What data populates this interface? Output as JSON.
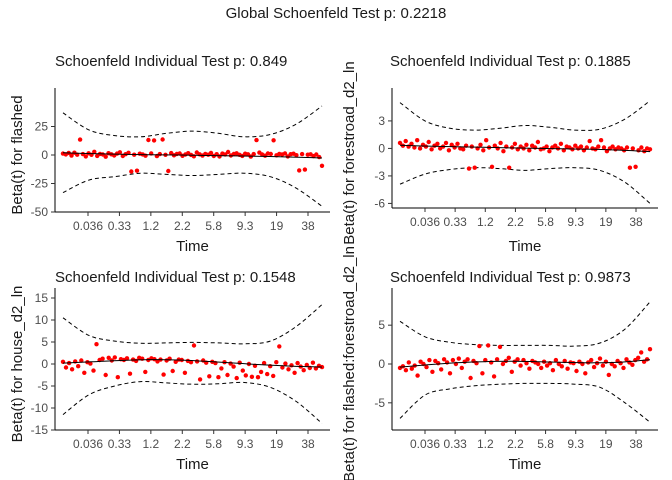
{
  "figure": {
    "global_title": "Global Schoenfeld Test p: 0.2218",
    "x_tick_labels": [
      "0.036",
      "0.33",
      "1.2",
      "2.2",
      "5.8",
      "9.3",
      "19",
      "38"
    ]
  },
  "chart_data": [
    {
      "type": "scatter",
      "title": "Schoenfeld Individual Test p: 0.849",
      "xlabel": "Time",
      "ylabel": "Beta(t) for flashed",
      "ylim": [
        -50,
        50
      ],
      "yticks": [
        -50,
        -25,
        0,
        25
      ],
      "x_ticks": [
        "0.036",
        "0.33",
        "1.2",
        "2.2",
        "5.8",
        "9.3",
        "19",
        "38"
      ],
      "series": [
        {
          "values": [
            1.2,
            0.5,
            1.8,
            -0.5,
            2.0,
            0.3,
            13.5,
            0.8,
            -1.2,
            1.5,
            0.2,
            2.8,
            -0.8,
            1.0,
            0.4,
            -1.5,
            1.6,
            0.6,
            -0.4,
            1.2,
            2.4,
            -0.9,
            0.7,
            1.9,
            -14.5,
            0.3,
            -13.8,
            1.1,
            0.5,
            -0.6,
            13.2,
            1.4,
            12.8,
            -1.0,
            0.8,
            13.6,
            0.2,
            -14.0,
            1.7,
            -0.3,
            0.9,
            1.3,
            -0.7,
            0.4,
            1.6,
            0.1,
            -1.1,
            2.2,
            0.6,
            -0.5,
            1.0,
            0.3,
            1.8,
            -0.9,
            0.7,
            -1.3,
            1.2,
            0.5,
            2.6,
            -0.4,
            0.9,
            1.5,
            0.2,
            -0.8,
            1.1,
            0.6,
            -1.4,
            0.8,
            13.1,
            2.1,
            0.4,
            -0.6,
            1.3,
            0.9,
            12.9,
            -0.3,
            1.0,
            0.5,
            1.4,
            -1.2,
            0.7,
            1.1,
            -0.2,
            -13.5,
            0.8,
            -12.8,
            0.3,
            0.6,
            -1.0,
            0.4,
            -1.8,
            -9.5
          ]
        }
      ],
      "smooth": [
        2.0,
        1.2,
        0.6,
        0.2,
        0.0,
        -0.4,
        -0.8,
        -1.2,
        -1.8,
        -2.6
      ],
      "band_upper": [
        37,
        22,
        17,
        16,
        19,
        21,
        19,
        16,
        18,
        27,
        43
      ],
      "band_lower": [
        -33,
        -22,
        -19,
        -16,
        -17,
        -18,
        -17,
        -16,
        -19,
        -29,
        -45
      ]
    },
    {
      "type": "scatter",
      "title": "Schoenfeld Individual Test p: 0.1885",
      "xlabel": "Time",
      "ylabel": "Beta(t) for forestroad_d2_ln",
      "ylim": [
        -6.5,
        5.5
      ],
      "yticks": [
        -6,
        -3,
        0,
        3
      ],
      "x_ticks": [
        "0.036",
        "0.33",
        "1.2",
        "2.2",
        "5.8",
        "9.3",
        "19",
        "38"
      ],
      "series": [
        {
          "values": [
            0.6,
            0.3,
            0.8,
            0.2,
            0.5,
            0.1,
            0.9,
            0.0,
            0.4,
            0.2,
            0.7,
            -0.1,
            0.3,
            0.5,
            0.0,
            0.2,
            0.6,
            -0.2,
            0.4,
            0.1,
            0.5,
            0.0,
            -0.1,
            0.3,
            -2.2,
            0.2,
            -2.1,
            0.0,
            0.4,
            -0.2,
            0.9,
            0.1,
            -2.0,
            0.3,
            0.0,
            0.6,
            -0.3,
            0.2,
            -2.1,
            0.1,
            0.5,
            -0.1,
            0.2,
            0.0,
            0.4,
            -0.2,
            0.3,
            0.1,
            0.7,
            -0.1,
            0.0,
            0.2,
            -0.3,
            0.1,
            0.3,
            0.0,
            0.5,
            -0.2,
            0.2,
            0.1,
            -0.1,
            0.3,
            0.0,
            0.2,
            -0.2,
            0.1,
            0.8,
            0.0,
            -0.1,
            0.2,
            0.9,
            0.1,
            -0.3,
            0.0,
            0.2,
            -0.1,
            0.1,
            0.0,
            -0.2,
            0.1,
            -2.1,
            0.0,
            -2.0,
            -0.2,
            0.1,
            -0.3,
            0.0,
            -0.1
          ]
        }
      ],
      "smooth": [
        0.35,
        0.25,
        0.18,
        0.12,
        0.06,
        0.0,
        -0.05,
        -0.1,
        -0.2,
        -0.35
      ],
      "band_upper": [
        5.0,
        3.0,
        2.2,
        2.0,
        2.2,
        2.5,
        2.3,
        2.0,
        2.1,
        3.2,
        5.2
      ],
      "band_lower": [
        -3.9,
        -2.8,
        -2.3,
        -2.1,
        -2.2,
        -2.4,
        -2.2,
        -2.1,
        -2.4,
        -3.7,
        -6.0
      ]
    },
    {
      "type": "scatter",
      "title": "Schoenfeld Individual Test p: 0.1548",
      "xlabel": "Time",
      "ylabel": "Beta(t) for house_d2_ln",
      "ylim": [
        -15,
        15
      ],
      "yticks": [
        -15,
        -10,
        -5,
        0,
        5,
        10,
        15
      ],
      "x_ticks": [
        "0.036",
        "0.33",
        "1.2",
        "2.2",
        "5.8",
        "9.3",
        "19",
        "38"
      ],
      "series": [
        {
          "values": [
            0.5,
            -0.8,
            0.2,
            -1.2,
            0.6,
            -0.5,
            0.8,
            -2.0,
            0.4,
            0.1,
            -1.5,
            4.5,
            0.9,
            1.2,
            -2.5,
            1.4,
            0.8,
            1.5,
            -3.0,
            1.1,
            0.9,
            1.3,
            -2.2,
            1.0,
            0.7,
            1.4,
            1.2,
            -1.8,
            0.9,
            1.3,
            1.1,
            0.6,
            1.0,
            -2.4,
            0.8,
            1.2,
            -1.6,
            0.5,
            1.0,
            0.9,
            -2.0,
            0.7,
            0.4,
            4.2,
            0.6,
            -3.5,
            0.8,
            0.3,
            -2.8,
            0.5,
            0.2,
            -3.0,
            -1.0,
            0.4,
            -2.5,
            0.1,
            -0.6,
            -3.2,
            0.3,
            -1.5,
            -2.6,
            0.0,
            -2.9,
            -0.4,
            -3.0,
            -1.8,
            0.2,
            -2.3,
            -0.5,
            -2.7,
            0.4,
            4.0,
            -0.8,
            0.1,
            -1.2,
            -0.3,
            -2.0,
            0.2,
            -0.6,
            -1.4,
            -0.2,
            -0.9,
            0.3,
            -1.0,
            -0.4,
            -0.7
          ]
        }
      ],
      "smooth": [
        0.2,
        0.5,
        0.8,
        1.0,
        0.9,
        0.6,
        0.2,
        -0.2,
        -0.5,
        -0.7
      ],
      "band_upper": [
        10.5,
        6.5,
        5.2,
        4.7,
        4.8,
        4.9,
        4.8,
        4.6,
        5.2,
        8.5,
        13.5
      ],
      "band_lower": [
        -11.5,
        -7.0,
        -5.0,
        -4.0,
        -4.3,
        -4.6,
        -4.5,
        -4.2,
        -5.3,
        -8.5,
        -13.5
      ]
    },
    {
      "type": "scatter",
      "title": "Schoenfeld Individual Test p: 0.9873",
      "xlabel": "Time",
      "ylabel": "Beta(t) for flashed:forestroad_d2_ln",
      "ylim": [
        -8.5,
        8.5
      ],
      "yticks": [
        -5,
        0,
        5
      ],
      "x_ticks": [
        "0.036",
        "0.33",
        "1.2",
        "2.2",
        "5.8",
        "9.3",
        "19",
        "38"
      ],
      "series": [
        {
          "values": [
            -0.5,
            -0.3,
            -0.8,
            0.2,
            -0.6,
            -0.2,
            -1.5,
            0.3,
            0.0,
            -0.4,
            0.5,
            -1.0,
            0.4,
            0.1,
            -0.7,
            0.6,
            0.2,
            -1.2,
            0.5,
            0.0,
            0.7,
            -0.5,
            0.3,
            0.6,
            -1.8,
            0.4,
            0.1,
            2.3,
            -1.2,
            0.5,
            2.4,
            0.2,
            -1.6,
            0.6,
            2.2,
            0.0,
            0.4,
            0.8,
            -1.0,
            0.3,
            0.6,
            -0.2,
            0.5,
            0.1,
            -0.6,
            0.4,
            0.2,
            0.0,
            -0.5,
            0.3,
            -0.2,
            0.1,
            -0.8,
            0.5,
            0.0,
            -0.3,
            0.4,
            -0.6,
            0.2,
            0.1,
            -0.9,
            0.3,
            0.0,
            -1.2,
            0.2,
            0.5,
            -0.4,
            0.1,
            0.7,
            -0.2,
            0.3,
            -1.4,
            0.0,
            -0.3,
            0.4,
            0.1,
            -0.5,
            0.6,
            0.2,
            -0.1,
            0.5,
            0.8,
            1.5,
            0.3,
            0.6,
            1.9
          ]
        }
      ],
      "smooth": [
        -0.4,
        -0.1,
        0.15,
        0.3,
        0.35,
        0.3,
        0.2,
        0.15,
        0.25,
        0.55
      ],
      "band_upper": [
        5.5,
        3.5,
        2.8,
        2.5,
        2.4,
        2.4,
        2.4,
        2.3,
        2.7,
        4.5,
        8.0
      ],
      "band_lower": [
        -7.0,
        -4.0,
        -3.2,
        -2.8,
        -2.6,
        -2.5,
        -2.5,
        -2.6,
        -3.0,
        -5.0,
        -7.5
      ]
    }
  ]
}
